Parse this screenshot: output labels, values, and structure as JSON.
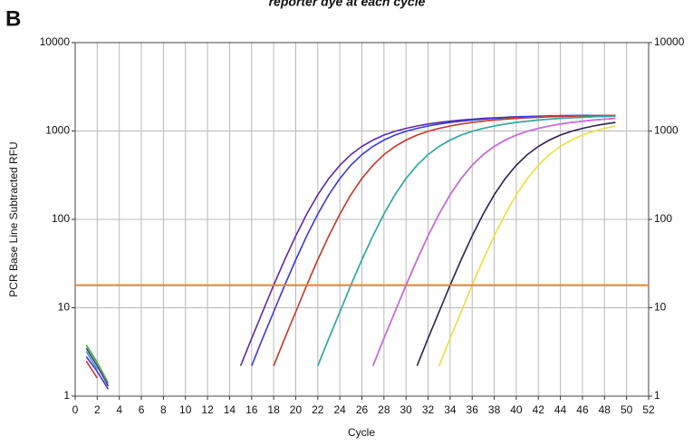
{
  "chart_data": {
    "type": "line",
    "title": "reporter dye at each cycle",
    "panel_label": "B",
    "xlabel": "Cycle",
    "ylabel": "PCR Base Line Subtracted RFU",
    "log_y": true,
    "grid": true,
    "xlim": [
      0,
      52
    ],
    "xticks": [
      0,
      2,
      4,
      6,
      8,
      10,
      12,
      14,
      16,
      18,
      20,
      22,
      24,
      26,
      28,
      30,
      32,
      34,
      36,
      38,
      40,
      42,
      44,
      46,
      48,
      50,
      52
    ],
    "ylim": [
      1,
      10000
    ],
    "yticks": [
      1,
      10,
      100,
      1000,
      10000
    ],
    "threshold": {
      "value": 18,
      "color": "#e8802a"
    },
    "x": [
      1,
      2,
      3,
      4,
      5,
      6,
      7,
      8,
      9,
      10,
      11,
      12,
      13,
      14,
      15,
      16,
      17,
      18,
      19,
      20,
      21,
      22,
      23,
      24,
      25,
      26,
      27,
      28,
      29,
      30,
      31,
      32,
      33,
      34,
      35,
      36,
      37,
      38,
      39,
      40,
      41,
      42,
      43,
      44,
      45,
      46,
      47,
      48,
      49
    ],
    "series": [
      {
        "color": "#5a2ca0",
        "values": [
          3.5,
          2.2,
          1.3,
          null,
          null,
          null,
          null,
          null,
          null,
          null,
          null,
          null,
          null,
          null,
          2.2,
          4.5,
          9,
          18,
          35,
          65,
          115,
          190,
          290,
          410,
          540,
          670,
          790,
          900,
          990,
          1070,
          1140,
          1200,
          1250,
          1290,
          1330,
          1360,
          1390,
          1410,
          1430,
          1450,
          1460,
          1470,
          1480,
          1490,
          1495,
          1500,
          1500,
          1500,
          1500
        ]
      },
      {
        "color": "#3a3ad8",
        "values": [
          2.8,
          1.9,
          1.2,
          null,
          null,
          null,
          null,
          null,
          null,
          null,
          null,
          null,
          null,
          null,
          null,
          2.2,
          4.5,
          9,
          18,
          35,
          65,
          115,
          190,
          290,
          410,
          540,
          670,
          790,
          900,
          990,
          1070,
          1140,
          1200,
          1250,
          1290,
          1330,
          1360,
          1390,
          1410,
          1430,
          1450,
          1460,
          1470,
          1480,
          1490,
          1495,
          1500,
          1500,
          1500
        ]
      },
      {
        "color": "#e6e63a",
        "values": [
          null,
          null,
          null,
          null,
          null,
          null,
          null,
          null,
          null,
          null,
          null,
          null,
          null,
          null,
          null,
          null,
          null,
          2.2,
          4.5,
          9,
          18,
          35,
          65,
          115,
          190,
          290,
          410,
          540,
          670,
          790,
          900,
          990,
          1070,
          1140,
          1200,
          1250,
          1290,
          1330,
          1360,
          1390,
          1410,
          1430,
          1450,
          1460,
          1470,
          1480,
          1490,
          1495,
          1500
        ]
      },
      {
        "color": "#c03a3a",
        "values": [
          2.5,
          1.6,
          null,
          null,
          null,
          null,
          null,
          null,
          null,
          null,
          null,
          null,
          null,
          null,
          null,
          null,
          null,
          2.2,
          4.5,
          9,
          18,
          35,
          65,
          115,
          190,
          290,
          410,
          540,
          670,
          790,
          900,
          990,
          1070,
          1140,
          1200,
          1250,
          1290,
          1330,
          1360,
          1390,
          1410,
          1430,
          1450,
          1460,
          1470,
          1480,
          1490,
          1495,
          1500
        ]
      },
      {
        "color": "#34b034",
        "values": [
          3.8,
          2.4,
          1.4,
          null,
          null,
          null,
          null,
          null,
          null,
          null,
          null,
          null,
          null,
          null,
          null,
          null,
          null,
          null,
          null,
          null,
          null,
          2.2,
          4.5,
          9,
          18,
          35,
          65,
          115,
          190,
          290,
          410,
          540,
          670,
          790,
          900,
          990,
          1070,
          1140,
          1200,
          1250,
          1290,
          1330,
          1360,
          1390,
          1410,
          1430,
          1450,
          1460,
          1470
        ]
      },
      {
        "color": "#38a8a8",
        "values": [
          3.2,
          2.0,
          null,
          null,
          null,
          null,
          null,
          null,
          null,
          null,
          null,
          null,
          null,
          null,
          null,
          null,
          null,
          null,
          null,
          null,
          null,
          2.2,
          4.5,
          9,
          18,
          35,
          65,
          115,
          190,
          290,
          410,
          540,
          670,
          790,
          900,
          990,
          1070,
          1140,
          1200,
          1250,
          1290,
          1330,
          1360,
          1390,
          1410,
          1430,
          1450,
          1460,
          1470
        ]
      },
      {
        "color": "#2a2a9a",
        "values": [
          null,
          null,
          null,
          null,
          null,
          null,
          null,
          null,
          null,
          null,
          null,
          null,
          null,
          null,
          null,
          null,
          null,
          null,
          null,
          null,
          null,
          null,
          null,
          null,
          null,
          null,
          2.2,
          4.5,
          9,
          18,
          35,
          65,
          115,
          190,
          290,
          410,
          540,
          670,
          790,
          900,
          990,
          1070,
          1140,
          1200,
          1250,
          1290,
          1330,
          1360,
          1390
        ]
      },
      {
        "color": "#d070d8",
        "values": [
          null,
          null,
          null,
          null,
          null,
          null,
          null,
          null,
          null,
          null,
          null,
          null,
          null,
          null,
          null,
          null,
          null,
          null,
          null,
          null,
          null,
          null,
          null,
          null,
          null,
          null,
          2.2,
          4.5,
          9,
          18,
          35,
          65,
          115,
          190,
          290,
          410,
          540,
          670,
          790,
          900,
          990,
          1070,
          1140,
          1200,
          1250,
          1290,
          1330,
          1360,
          1390
        ]
      },
      {
        "color": "#302050",
        "values": [
          null,
          null,
          null,
          null,
          null,
          null,
          null,
          null,
          null,
          null,
          null,
          null,
          null,
          null,
          null,
          null,
          null,
          null,
          null,
          null,
          null,
          null,
          null,
          null,
          null,
          null,
          null,
          null,
          null,
          null,
          2.2,
          4.5,
          9,
          18,
          35,
          65,
          115,
          190,
          290,
          410,
          540,
          670,
          790,
          900,
          990,
          1070,
          1140,
          1200,
          1250
        ]
      },
      {
        "color": "#e8e040",
        "values": [
          null,
          null,
          null,
          null,
          null,
          null,
          null,
          null,
          null,
          null,
          null,
          null,
          null,
          null,
          null,
          null,
          null,
          null,
          null,
          null,
          null,
          null,
          null,
          null,
          null,
          null,
          null,
          null,
          null,
          null,
          null,
          null,
          2.2,
          4.5,
          9,
          18,
          35,
          65,
          115,
          190,
          290,
          410,
          540,
          670,
          790,
          900,
          990,
          1070,
          1140
        ]
      }
    ]
  }
}
